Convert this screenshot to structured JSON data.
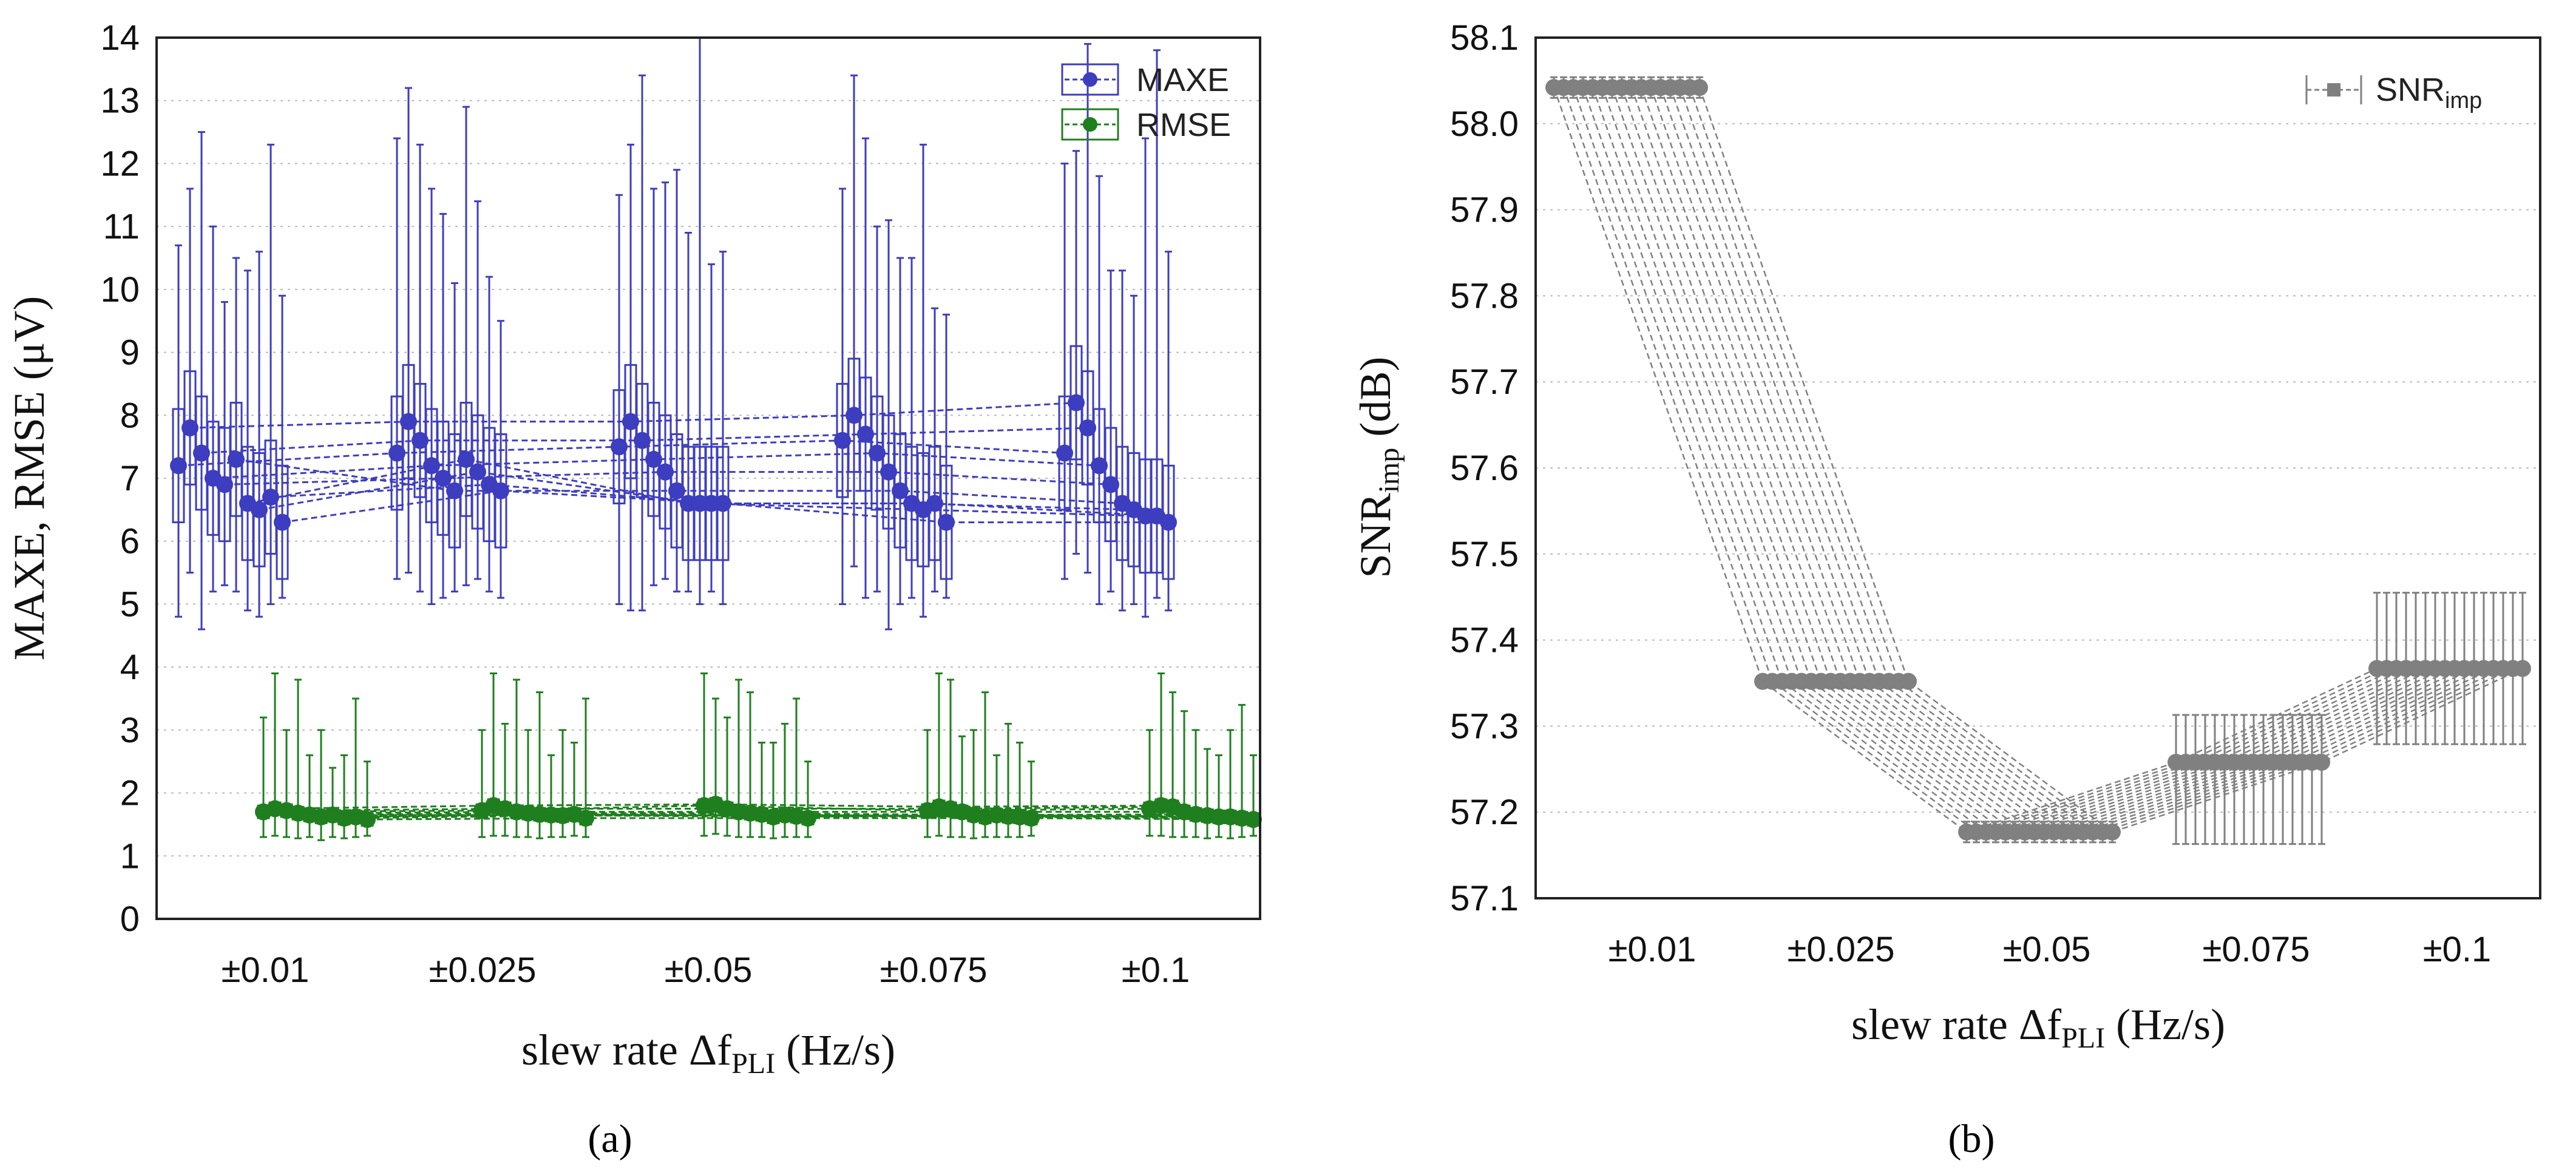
{
  "chart_data": [
    {
      "type": "scatter",
      "panel_label": "(a)",
      "xlabel": "slew rate Δf",
      "xlabel_sub": "PLI",
      "xlabel_suffix": " (Hz/s)",
      "ylabel": "MAXE, RMSE (μV)",
      "categories": [
        "±0.01",
        "±0.025",
        "±0.05",
        "±0.075",
        "±0.1"
      ],
      "ylim": [
        0,
        14
      ],
      "yticks": [
        0,
        1,
        2,
        3,
        4,
        5,
        6,
        7,
        8,
        9,
        10,
        11,
        12,
        13,
        14
      ],
      "grid": true,
      "legend_position": "top-right",
      "colors": {
        "MAXE": "#3d3dbf",
        "RMSE": "#1f7f1f"
      },
      "series": [
        {
          "name": "MAXE",
          "legend_label": "MAXE",
          "group_values": [
            [
              7.2,
              7.8,
              7.4,
              7.0,
              6.9,
              7.3,
              6.6,
              6.5,
              6.7,
              6.3
            ],
            [
              7.4,
              7.9,
              7.6,
              7.2,
              7.0,
              6.8,
              7.3,
              7.1,
              6.9,
              6.8
            ],
            [
              7.5,
              7.9,
              7.6,
              7.3,
              7.1,
              6.8,
              6.6,
              6.6,
              6.6,
              6.6
            ],
            [
              7.6,
              8.0,
              7.7,
              7.4,
              7.1,
              6.8,
              6.6,
              6.5,
              6.6,
              6.3
            ],
            [
              7.4,
              8.2,
              7.8,
              7.2,
              6.9,
              6.6,
              6.5,
              6.4,
              6.4,
              6.3
            ]
          ],
          "group_upper": [
            [
              10.7,
              11.6,
              12.5,
              11.0,
              9.8,
              10.5,
              10.3,
              10.6,
              12.3,
              9.9
            ],
            [
              12.4,
              13.2,
              12.3,
              11.6,
              11.2,
              10.1,
              12.9,
              11.4,
              10.2,
              9.5
            ],
            [
              11.5,
              12.3,
              13.4,
              11.6,
              11.7,
              11.9,
              10.9,
              14.0,
              10.4,
              10.6
            ],
            [
              11.6,
              13.4,
              12.4,
              11.0,
              11.1,
              10.5,
              10.5,
              12.3,
              9.7,
              9.6
            ],
            [
              12.0,
              12.2,
              13.9,
              11.8,
              10.3,
              10.3,
              9.9,
              12.4,
              13.8,
              10.6
            ]
          ],
          "group_lower": [
            [
              4.8,
              5.5,
              4.6,
              5.2,
              5.3,
              5.2,
              4.9,
              4.8,
              5.0,
              5.1
            ],
            [
              5.4,
              5.5,
              5.2,
              5.0,
              5.1,
              5.2,
              5.3,
              5.4,
              5.2,
              5.1
            ],
            [
              5.0,
              4.9,
              4.9,
              5.3,
              5.4,
              5.2,
              5.2,
              5.0,
              5.2,
              5.0
            ],
            [
              5.0,
              5.6,
              5.1,
              5.2,
              4.6,
              5.0,
              5.1,
              4.8,
              5.2,
              5.1
            ],
            [
              5.4,
              5.8,
              5.5,
              5.0,
              5.2,
              4.9,
              5.0,
              4.8,
              5.1,
              4.9
            ]
          ]
        },
        {
          "name": "RMSE",
          "legend_label": "RMSE",
          "group_values": [
            [
              1.7,
              1.75,
              1.72,
              1.68,
              1.65,
              1.62,
              1.65,
              1.6,
              1.62,
              1.58
            ],
            [
              1.72,
              1.8,
              1.75,
              1.7,
              1.68,
              1.66,
              1.65,
              1.64,
              1.66,
              1.6
            ],
            [
              1.8,
              1.82,
              1.75,
              1.7,
              1.68,
              1.66,
              1.62,
              1.65,
              1.63,
              1.6
            ],
            [
              1.72,
              1.78,
              1.75,
              1.7,
              1.65,
              1.62,
              1.65,
              1.63,
              1.62,
              1.6
            ],
            [
              1.75,
              1.8,
              1.78,
              1.7,
              1.66,
              1.64,
              1.62,
              1.62,
              1.6,
              1.58
            ]
          ],
          "group_upper": [
            [
              3.2,
              3.9,
              3.0,
              3.8,
              2.6,
              3.0,
              2.4,
              2.6,
              3.5,
              2.5
            ],
            [
              3.0,
              3.9,
              3.1,
              3.8,
              3.0,
              3.6,
              2.6,
              3.0,
              2.8,
              3.5
            ],
            [
              3.9,
              3.5,
              3.2,
              3.8,
              3.6,
              2.8,
              2.8,
              3.1,
              3.5,
              2.5
            ],
            [
              3.0,
              3.9,
              3.8,
              2.9,
              3.0,
              3.6,
              2.6,
              3.1,
              2.8,
              2.5
            ],
            [
              3.0,
              3.9,
              3.6,
              3.3,
              3.0,
              2.7,
              2.6,
              3.0,
              3.4,
              2.6
            ]
          ],
          "group_lower": [
            [
              1.3,
              1.32,
              1.3,
              1.28,
              1.3,
              1.25,
              1.3,
              1.28,
              1.3,
              1.32
            ],
            [
              1.3,
              1.32,
              1.32,
              1.3,
              1.3,
              1.28,
              1.3,
              1.3,
              1.32,
              1.3
            ],
            [
              1.32,
              1.35,
              1.32,
              1.3,
              1.3,
              1.3,
              1.28,
              1.3,
              1.3,
              1.3
            ],
            [
              1.3,
              1.32,
              1.3,
              1.3,
              1.28,
              1.3,
              1.3,
              1.3,
              1.3,
              1.32
            ],
            [
              1.32,
              1.32,
              1.3,
              1.3,
              1.3,
              1.28,
              1.3,
              1.28,
              1.3,
              1.32
            ]
          ]
        }
      ]
    },
    {
      "type": "scatter",
      "panel_label": "(b)",
      "xlabel": "slew rate Δf",
      "xlabel_sub": "PLI",
      "xlabel_suffix": " (Hz/s)",
      "ylabel": "SNR",
      "ylabel_sub": "imp",
      "ylabel_suffix": " (dB)",
      "categories": [
        "±0.01",
        "±0.025",
        "±0.05",
        "±0.075",
        "±0.1"
      ],
      "ylim": [
        57.1,
        58.1
      ],
      "yticks": [
        "57.1",
        "57.2",
        "57.3",
        "57.4",
        "57.5",
        "57.6",
        "57.7",
        "57.8",
        "57.9",
        "58.0",
        "58.1"
      ],
      "grid": true,
      "legend_position": "top-right",
      "color": "#808080",
      "series": [
        {
          "name": "SNRimp",
          "legend_label": "SNR",
          "legend_sub": "imp",
          "values": [
            58.042,
            57.352,
            57.177,
            57.258,
            57.367
          ],
          "error_plus": [
            0.012,
            0.008,
            0.012,
            0.055,
            0.088
          ],
          "error_minus": [
            0.012,
            0.008,
            0.012,
            0.095,
            0.088
          ]
        }
      ]
    }
  ]
}
